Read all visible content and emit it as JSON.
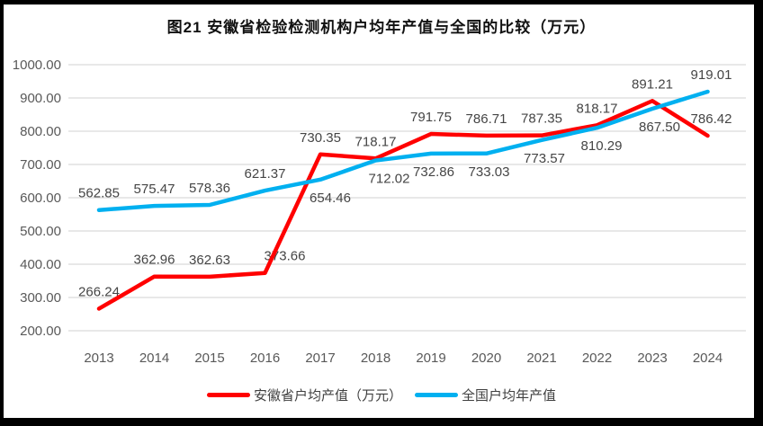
{
  "title": "图21 安徽省检验检测机构户均年产值与全国的比较（万元）",
  "colors": {
    "frame": "#000000",
    "grid": "#d9d9d9",
    "axis_text": "#595959",
    "data_label_text": "#454545",
    "anhui_red": "#ff0000",
    "national_blue": "#00b0f0"
  },
  "chart_data": {
    "type": "line",
    "title": "图21 安徽省检验检测机构户均年产值与全国的比较（万元）",
    "categories": [
      "2013",
      "2014",
      "2015",
      "2016",
      "2017",
      "2018",
      "2019",
      "2020",
      "2021",
      "2022",
      "2023",
      "2024"
    ],
    "series": [
      {
        "name": "安徽省户均产值（万元）",
        "color": "#ff0000",
        "values": [
          266.24,
          362.96,
          362.63,
          373.66,
          730.35,
          718.17,
          791.75,
          786.71,
          787.35,
          818.17,
          891.21,
          786.42
        ],
        "label_side": [
          "above",
          "above",
          "above",
          "above",
          "above",
          "above",
          "above",
          "above",
          "above",
          "above",
          "above",
          "above"
        ],
        "label_dx": [
          0,
          0,
          0,
          22,
          0,
          0,
          0,
          0,
          0,
          0,
          0,
          4
        ]
      },
      {
        "name": "全国户均年产值",
        "color": "#00b0f0",
        "values": [
          562.85,
          575.47,
          578.36,
          621.37,
          654.46,
          712.02,
          732.86,
          733.03,
          773.57,
          810.29,
          867.5,
          919.01
        ],
        "label_side": [
          "above",
          "above",
          "above",
          "above",
          "below",
          "below",
          "below",
          "below",
          "below",
          "below",
          "below",
          "above"
        ],
        "label_dx": [
          0,
          0,
          0,
          0,
          11,
          15,
          3,
          3,
          3,
          5,
          8,
          4
        ]
      }
    ],
    "ylim": [
      200,
      1000
    ],
    "yticks": [
      1000,
      900,
      800,
      700,
      600,
      500,
      400,
      300,
      200
    ],
    "ytick_format": "2dp",
    "xlabel": "",
    "ylabel": "",
    "grid": "horizontal",
    "legend_position": "bottom"
  }
}
